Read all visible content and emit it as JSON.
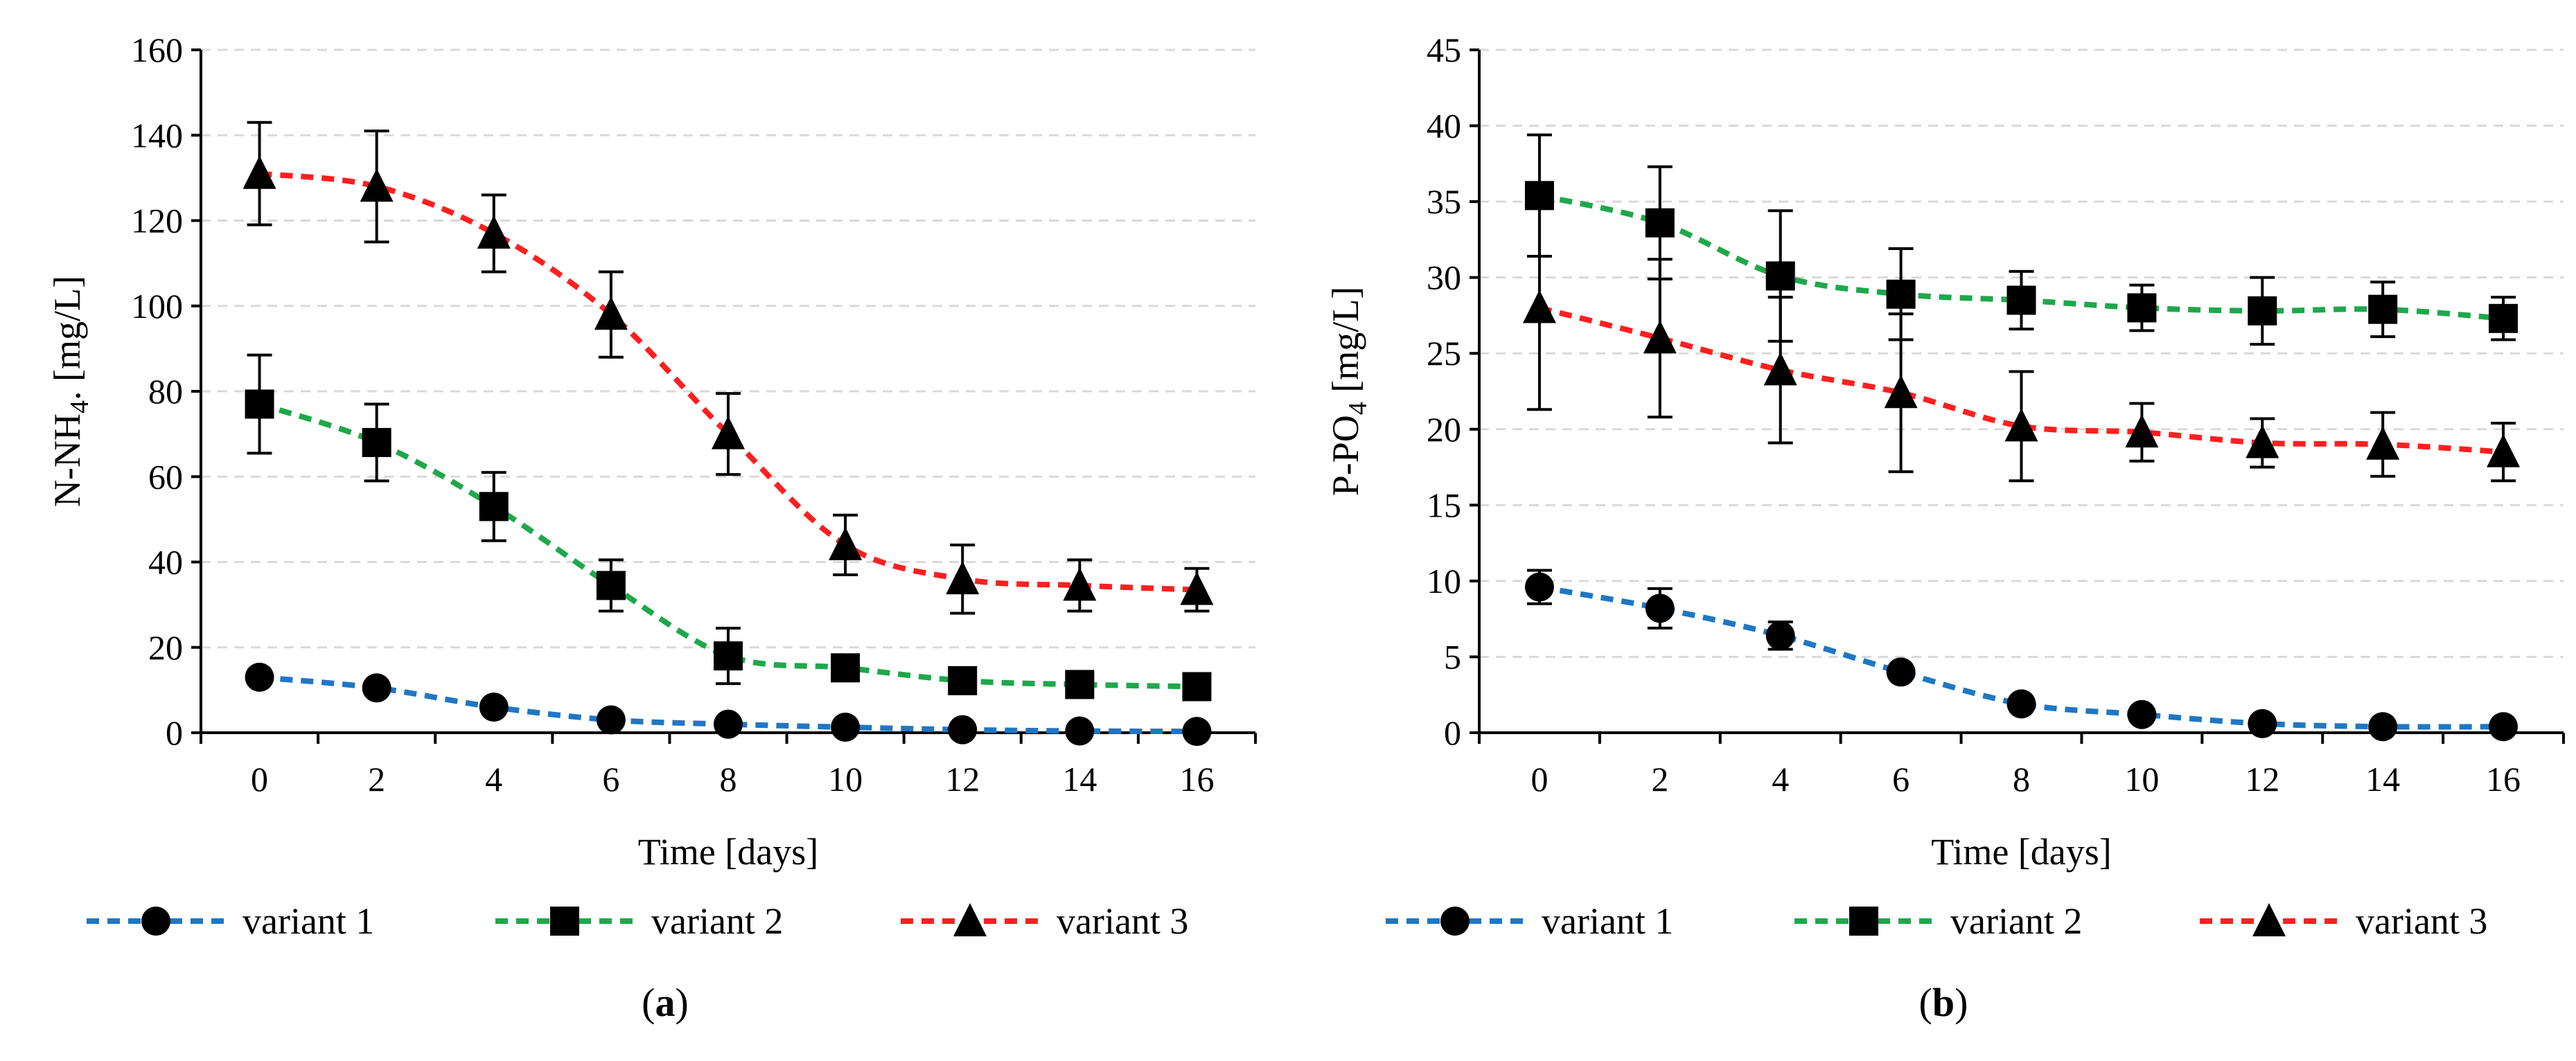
{
  "chart_data": [
    {
      "type": "line",
      "panel_label": "a",
      "xlabel": "Time [days]",
      "ylabel_main": "N-NH",
      "ylabel_sub": "4",
      "ylabel_tail": ". [mg/L]",
      "x": [
        0,
        2,
        4,
        6,
        8,
        10,
        12,
        14,
        16
      ],
      "xticks": [
        "0",
        "2",
        "4",
        "6",
        "8",
        "10",
        "12",
        "14",
        "16"
      ],
      "ylim": [
        0,
        160
      ],
      "yticks": [
        "0",
        "20",
        "40",
        "60",
        "80",
        "100",
        "120",
        "140",
        "160"
      ],
      "grid": true,
      "legend_position": "bottom",
      "series": [
        {
          "name": "variant 1",
          "color": "#1f77c4",
          "marker": "circle",
          "values": [
            13,
            10.5,
            6,
            3,
            2,
            1.3,
            0.7,
            0.4,
            0.3
          ],
          "errors": [
            0,
            0,
            0,
            0,
            0,
            0,
            0,
            0,
            0
          ]
        },
        {
          "name": "variant 2",
          "color": "#1ea84a",
          "marker": "square",
          "values": [
            77,
            68,
            53,
            34.5,
            18,
            15.2,
            12.2,
            11.3,
            10.8
          ],
          "errors": [
            11.5,
            9,
            8,
            6,
            6.5,
            0,
            0,
            0,
            0
          ]
        },
        {
          "name": "variant 3",
          "color": "#ff1f1f",
          "marker": "triangle",
          "values": [
            131,
            128,
            117,
            98,
            70,
            44,
            36,
            34.5,
            33.5
          ],
          "errors": [
            12,
            13,
            9,
            10,
            9.5,
            7,
            8,
            6,
            5
          ]
        }
      ]
    },
    {
      "type": "line",
      "panel_label": "b",
      "xlabel": "Time [days]",
      "ylabel_main": "P-PO",
      "ylabel_sub": "4",
      "ylabel_tail": " [mg/L]",
      "x": [
        0,
        2,
        4,
        6,
        8,
        10,
        12,
        14,
        16
      ],
      "xticks": [
        "0",
        "2",
        "4",
        "6",
        "8",
        "10",
        "12",
        "14",
        "16"
      ],
      "ylim": [
        0,
        45
      ],
      "yticks": [
        "0",
        "5",
        "10",
        "15",
        "20",
        "25",
        "30",
        "35",
        "40",
        "45"
      ],
      "grid": true,
      "legend_position": "bottom",
      "series": [
        {
          "name": "variant 1",
          "color": "#1f77c4",
          "marker": "circle",
          "values": [
            9.6,
            8.2,
            6.4,
            4,
            1.9,
            1.2,
            0.6,
            0.4,
            0.4
          ],
          "errors": [
            1.1,
            1.3,
            0.9,
            0,
            0,
            0,
            0,
            0,
            0
          ]
        },
        {
          "name": "variant 2",
          "color": "#1ea84a",
          "marker": "square",
          "values": [
            35.4,
            33.6,
            30.1,
            28.9,
            28.5,
            28,
            27.8,
            27.9,
            27.3
          ],
          "errors": [
            4,
            3.7,
            4.3,
            3,
            1.9,
            1.5,
            2.2,
            1.8,
            1.4
          ]
        },
        {
          "name": "variant 3",
          "color": "#ff1f1f",
          "marker": "triangle",
          "values": [
            28,
            26,
            23.9,
            22.4,
            20.2,
            19.8,
            19.1,
            19,
            18.5
          ],
          "errors": [
            6.7,
            5.2,
            4.8,
            5.2,
            3.6,
            1.9,
            1.6,
            2.1,
            1.9
          ]
        }
      ]
    }
  ]
}
